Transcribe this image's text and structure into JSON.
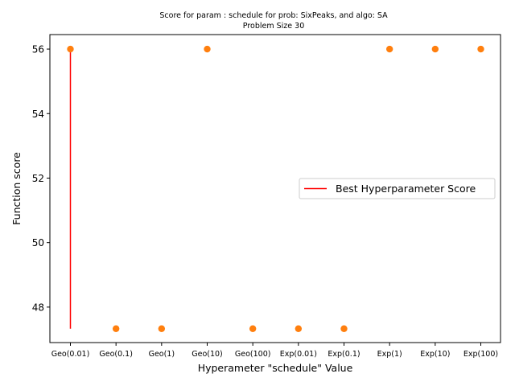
{
  "chart_data": {
    "type": "scatter",
    "title_line1": "Score for param : schedule for prob: SixPeaks, and algo: SA",
    "title_line2": "Problem Size 30",
    "xlabel": "Hyperameter \"schedule\" Value",
    "ylabel": "Function score",
    "categories": [
      "Geo(0.01)",
      "Geo(0.1)",
      "Geo(1)",
      "Geo(10)",
      "Geo(100)",
      "Exp(0.01)",
      "Exp(0.1)",
      "Exp(1)",
      "Exp(10)",
      "Exp(100)"
    ],
    "values": [
      56,
      47.33,
      47.33,
      56,
      47.33,
      47.33,
      47.33,
      56,
      56,
      56
    ],
    "ylim": [
      46.9,
      56.45
    ],
    "yticks": [
      48,
      50,
      52,
      54,
      56
    ],
    "best_line": {
      "category_index": 0,
      "y_from": 47.33,
      "y_to": 56
    },
    "legend": {
      "label": "Best Hyperparameter Score",
      "placement": "center-right"
    },
    "colors": {
      "points": "#ff7f0e",
      "best_line": "#ff0000",
      "axes": "#000000"
    },
    "grid": false
  }
}
